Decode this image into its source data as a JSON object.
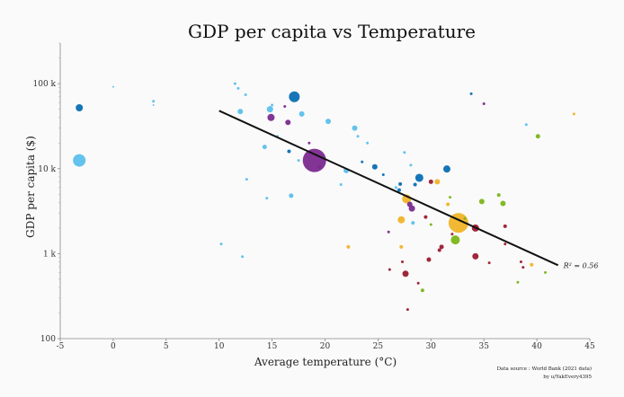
{
  "chart_data": {
    "type": "scatter",
    "title": "GDP per capita vs Temperature",
    "xlabel": "Average temperature (°C)",
    "ylabel": "GDP per capita ($)",
    "xlim": [
      -5,
      45
    ],
    "ylim": [
      100,
      300000
    ],
    "yscale": "log",
    "xticks": [
      -5,
      0,
      5,
      10,
      15,
      20,
      25,
      30,
      35,
      40,
      45
    ],
    "xtick_labels": [
      "-5",
      "0",
      "5",
      "10",
      "15",
      "20",
      "25",
      "30",
      "35",
      "40",
      "45"
    ],
    "yticks": [
      100,
      1000,
      10000,
      100000
    ],
    "ytick_labels": [
      "100",
      "1 k",
      "10 k",
      "100 k"
    ],
    "trendline": {
      "x": [
        10,
        42
      ],
      "y": [
        48000,
        730
      ],
      "label": "R² = 0.56"
    },
    "source": [
      "Data source : World Bank (2021 data)",
      "by u/YakEvery4395"
    ],
    "colors": {
      "light_blue": "#5bc0eb",
      "blue": "#0a6eb4",
      "purple": "#7b2a8f",
      "yellow": "#f0b429",
      "red": "#9b1b30",
      "green": "#7cb518",
      "line": "#111111"
    },
    "points": [
      {
        "x": -3.2,
        "y": 52000,
        "s": 4,
        "c": "blue"
      },
      {
        "x": -3.2,
        "y": 12500,
        "s": 7,
        "c": "light_blue"
      },
      {
        "x": 0,
        "y": 92000,
        "s": 1,
        "c": "light_blue"
      },
      {
        "x": 3.8,
        "y": 62000,
        "s": 1.5,
        "c": "light_blue"
      },
      {
        "x": 3.8,
        "y": 56000,
        "s": 1,
        "c": "light_blue"
      },
      {
        "x": 10.2,
        "y": 1300,
        "s": 1.5,
        "c": "light_blue"
      },
      {
        "x": 11.5,
        "y": 100000,
        "s": 1.5,
        "c": "light_blue"
      },
      {
        "x": 11.8,
        "y": 88000,
        "s": 1.5,
        "c": "light_blue"
      },
      {
        "x": 12,
        "y": 47000,
        "s": 3,
        "c": "light_blue"
      },
      {
        "x": 12.2,
        "y": 920,
        "s": 1.5,
        "c": "light_blue"
      },
      {
        "x": 12.5,
        "y": 74000,
        "s": 1.5,
        "c": "light_blue"
      },
      {
        "x": 12.6,
        "y": 7500,
        "s": 1.5,
        "c": "light_blue"
      },
      {
        "x": 14.3,
        "y": 18000,
        "s": 2.5,
        "c": "light_blue"
      },
      {
        "x": 14.5,
        "y": 4500,
        "s": 1.5,
        "c": "light_blue"
      },
      {
        "x": 14.8,
        "y": 50000,
        "s": 3.5,
        "c": "light_blue"
      },
      {
        "x": 14.9,
        "y": 40000,
        "s": 4,
        "c": "purple"
      },
      {
        "x": 15,
        "y": 56000,
        "s": 1.5,
        "c": "light_blue"
      },
      {
        "x": 15.5,
        "y": 24000,
        "s": 1.5,
        "c": "light_blue"
      },
      {
        "x": 16.2,
        "y": 54000,
        "s": 1.5,
        "c": "purple"
      },
      {
        "x": 16.5,
        "y": 35000,
        "s": 3,
        "c": "purple"
      },
      {
        "x": 16.6,
        "y": 16000,
        "s": 2,
        "c": "blue"
      },
      {
        "x": 16.8,
        "y": 4800,
        "s": 2.5,
        "c": "light_blue"
      },
      {
        "x": 17.1,
        "y": 70000,
        "s": 6,
        "c": "blue"
      },
      {
        "x": 17.5,
        "y": 12500,
        "s": 1.5,
        "c": "light_blue"
      },
      {
        "x": 17.8,
        "y": 44000,
        "s": 3,
        "c": "light_blue"
      },
      {
        "x": 18.5,
        "y": 20000,
        "s": 1.5,
        "c": "purple"
      },
      {
        "x": 19,
        "y": 12500,
        "s": 13,
        "c": "purple"
      },
      {
        "x": 19.5,
        "y": 10500,
        "s": 2,
        "c": "purple"
      },
      {
        "x": 20.3,
        "y": 36000,
        "s": 3,
        "c": "light_blue"
      },
      {
        "x": 21.5,
        "y": 6500,
        "s": 1.5,
        "c": "light_blue"
      },
      {
        "x": 22,
        "y": 9500,
        "s": 3,
        "c": "light_blue"
      },
      {
        "x": 22.2,
        "y": 1200,
        "s": 2,
        "c": "yellow"
      },
      {
        "x": 22.8,
        "y": 30000,
        "s": 3,
        "c": "light_blue"
      },
      {
        "x": 23.1,
        "y": 24000,
        "s": 1.5,
        "c": "light_blue"
      },
      {
        "x": 23.5,
        "y": 12000,
        "s": 1.5,
        "c": "blue"
      },
      {
        "x": 24,
        "y": 20000,
        "s": 1.5,
        "c": "light_blue"
      },
      {
        "x": 24.7,
        "y": 10500,
        "s": 3,
        "c": "blue"
      },
      {
        "x": 25.5,
        "y": 8500,
        "s": 1.5,
        "c": "blue"
      },
      {
        "x": 26,
        "y": 1800,
        "s": 1.5,
        "c": "purple"
      },
      {
        "x": 26.1,
        "y": 650,
        "s": 1.5,
        "c": "red"
      },
      {
        "x": 26.7,
        "y": 6000,
        "s": 1.5,
        "c": "light_blue"
      },
      {
        "x": 27,
        "y": 5600,
        "s": 2,
        "c": "blue"
      },
      {
        "x": 27.1,
        "y": 6600,
        "s": 2,
        "c": "blue"
      },
      {
        "x": 27.2,
        "y": 2500,
        "s": 4,
        "c": "yellow"
      },
      {
        "x": 27.2,
        "y": 1200,
        "s": 2,
        "c": "yellow"
      },
      {
        "x": 27.3,
        "y": 800,
        "s": 1.5,
        "c": "red"
      },
      {
        "x": 27.5,
        "y": 15500,
        "s": 1.5,
        "c": "light_blue"
      },
      {
        "x": 27.6,
        "y": 580,
        "s": 3.5,
        "c": "red"
      },
      {
        "x": 27.7,
        "y": 4400,
        "s": 5,
        "c": "yellow"
      },
      {
        "x": 27.8,
        "y": 220,
        "s": 1.5,
        "c": "red"
      },
      {
        "x": 28,
        "y": 3800,
        "s": 3,
        "c": "purple"
      },
      {
        "x": 28.1,
        "y": 11000,
        "s": 1.5,
        "c": "light_blue"
      },
      {
        "x": 28.2,
        "y": 3400,
        "s": 3.5,
        "c": "purple"
      },
      {
        "x": 28.3,
        "y": 2300,
        "s": 2,
        "c": "light_blue"
      },
      {
        "x": 28.5,
        "y": 6500,
        "s": 2,
        "c": "blue"
      },
      {
        "x": 28.8,
        "y": 450,
        "s": 1.5,
        "c": "red"
      },
      {
        "x": 28.9,
        "y": 7800,
        "s": 4.5,
        "c": "blue"
      },
      {
        "x": 29.2,
        "y": 370,
        "s": 2,
        "c": "green"
      },
      {
        "x": 29.5,
        "y": 2700,
        "s": 2,
        "c": "red"
      },
      {
        "x": 29.8,
        "y": 850,
        "s": 2.5,
        "c": "red"
      },
      {
        "x": 30,
        "y": 2200,
        "s": 1.5,
        "c": "green"
      },
      {
        "x": 30,
        "y": 7000,
        "s": 2.5,
        "c": "red"
      },
      {
        "x": 30.6,
        "y": 7000,
        "s": 3,
        "c": "yellow"
      },
      {
        "x": 30.8,
        "y": 1100,
        "s": 2,
        "c": "red"
      },
      {
        "x": 31,
        "y": 1200,
        "s": 2.5,
        "c": "red"
      },
      {
        "x": 31.5,
        "y": 9900,
        "s": 4,
        "c": "blue"
      },
      {
        "x": 31.6,
        "y": 3800,
        "s": 2,
        "c": "yellow"
      },
      {
        "x": 31.8,
        "y": 4600,
        "s": 1.5,
        "c": "green"
      },
      {
        "x": 32,
        "y": 1700,
        "s": 1.5,
        "c": "red"
      },
      {
        "x": 32.3,
        "y": 1450,
        "s": 5,
        "c": "green"
      },
      {
        "x": 32.6,
        "y": 2300,
        "s": 11,
        "c": "yellow"
      },
      {
        "x": 33.2,
        "y": 2600,
        "s": 1.5,
        "c": "green"
      },
      {
        "x": 33.8,
        "y": 76000,
        "s": 1.5,
        "c": "blue"
      },
      {
        "x": 34.2,
        "y": 2000,
        "s": 4,
        "c": "red"
      },
      {
        "x": 34.2,
        "y": 930,
        "s": 3.5,
        "c": "red"
      },
      {
        "x": 34.8,
        "y": 4100,
        "s": 3,
        "c": "green"
      },
      {
        "x": 35,
        "y": 58000,
        "s": 1.5,
        "c": "purple"
      },
      {
        "x": 35.5,
        "y": 780,
        "s": 1.5,
        "c": "red"
      },
      {
        "x": 36.4,
        "y": 4900,
        "s": 2,
        "c": "green"
      },
      {
        "x": 36.8,
        "y": 3900,
        "s": 3,
        "c": "green"
      },
      {
        "x": 37,
        "y": 2100,
        "s": 2,
        "c": "red"
      },
      {
        "x": 37,
        "y": 1300,
        "s": 1.5,
        "c": "red"
      },
      {
        "x": 38.2,
        "y": 460,
        "s": 1.5,
        "c": "green"
      },
      {
        "x": 38.5,
        "y": 800,
        "s": 1.5,
        "c": "red"
      },
      {
        "x": 38.7,
        "y": 690,
        "s": 1.5,
        "c": "red"
      },
      {
        "x": 39,
        "y": 33000,
        "s": 1.5,
        "c": "light_blue"
      },
      {
        "x": 39.5,
        "y": 740,
        "s": 2,
        "c": "yellow"
      },
      {
        "x": 40.1,
        "y": 24000,
        "s": 2.5,
        "c": "green"
      },
      {
        "x": 40.8,
        "y": 600,
        "s": 1.5,
        "c": "green"
      },
      {
        "x": 43.5,
        "y": 44000,
        "s": 1.5,
        "c": "yellow"
      }
    ]
  }
}
